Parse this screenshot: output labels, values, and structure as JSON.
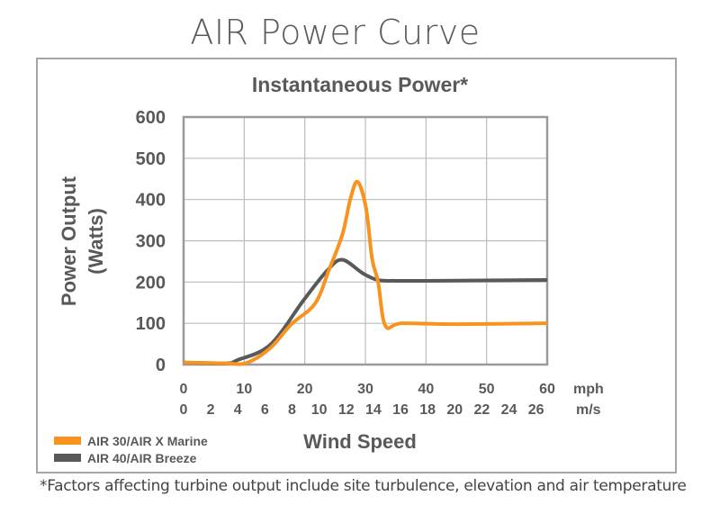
{
  "page_title": "AIR Power Curve",
  "footnote": "*Factors affecting turbine output include site turbulence, elevation and air temperature",
  "chart_data": {
    "type": "line",
    "title": "Instantaneous Power*",
    "xlabel": "Wind Speed",
    "ylabel_line1": "Power Output",
    "ylabel_line2": "(Watts)",
    "x_unit_primary": "mph",
    "x_unit_secondary": "m/s",
    "xlim": [
      0,
      60
    ],
    "ylim": [
      0,
      600
    ],
    "grid": true,
    "legend_position": "bottom-left",
    "x_ticks_mph": [
      "0",
      "10",
      "20",
      "30",
      "40",
      "50",
      "60"
    ],
    "x_ticks_ms": [
      "0",
      "2",
      "4",
      "6",
      "8",
      "10",
      "12",
      "14",
      "16",
      "18",
      "20",
      "22",
      "24",
      "26"
    ],
    "y_ticks": [
      "0",
      "100",
      "200",
      "300",
      "400",
      "500",
      "600"
    ],
    "series": [
      {
        "name": "AIR 30/AIR X Marine",
        "color": "#f7931e",
        "x": [
          0,
          7,
          10.4,
          14.3,
          17.8,
          21.7,
          24,
          26.2,
          27.5,
          28.7,
          30.1,
          31.1,
          32.1,
          33.3,
          36,
          45,
          60
        ],
        "y": [
          5,
          3,
          4,
          40,
          98,
          148,
          230,
          315,
          400,
          443,
          380,
          257,
          200,
          94,
          100,
          98,
          100
        ]
      },
      {
        "name": "AIR 40/AIR Breeze",
        "color": "#58595b",
        "x": [
          0,
          7,
          8.9,
          14.3,
          19.8,
          23.7,
          26.2,
          29.6,
          32.1,
          35,
          40,
          60
        ],
        "y": [
          5,
          3,
          11,
          48,
          156,
          228,
          254,
          221,
          205,
          203,
          203,
          205
        ]
      }
    ]
  }
}
